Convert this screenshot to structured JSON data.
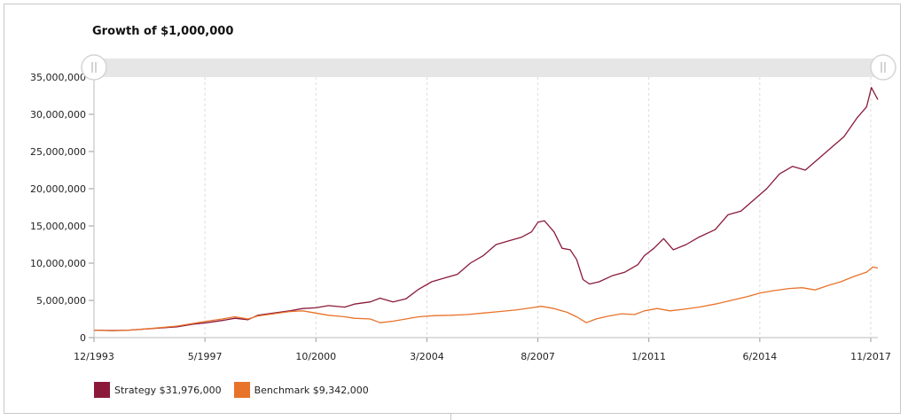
{
  "chart_data": {
    "type": "line",
    "title": "Growth of $1,000,000",
    "xlabel": "",
    "ylabel": "",
    "x_tick_labels": [
      "12/1993",
      "5/1997",
      "10/2000",
      "3/2004",
      "8/2007",
      "1/2011",
      "6/2014",
      "11/2017"
    ],
    "y_tick_labels": [
      "0",
      "5,000,000",
      "10,000,000",
      "15,000,000",
      "20,000,000",
      "25,000,000",
      "30,000,000",
      "35,000,000"
    ],
    "ylim": [
      0,
      35000000
    ],
    "xlim": [
      1993.92,
      2018.25
    ],
    "grid": "vertical dashed",
    "legend_position": "bottom-left",
    "series": [
      {
        "name": "Strategy $31,976,000",
        "color": "#8b1a3a",
        "points": [
          [
            1993.92,
            1000000
          ],
          [
            1994.5,
            950000
          ],
          [
            1995.0,
            1000000
          ],
          [
            1995.5,
            1150000
          ],
          [
            1996.0,
            1300000
          ],
          [
            1996.5,
            1450000
          ],
          [
            1997.0,
            1800000
          ],
          [
            1997.42,
            2000000
          ],
          [
            1997.9,
            2300000
          ],
          [
            1998.3,
            2600000
          ],
          [
            1998.7,
            2400000
          ],
          [
            1999.0,
            3000000
          ],
          [
            1999.5,
            3300000
          ],
          [
            2000.0,
            3600000
          ],
          [
            2000.4,
            3900000
          ],
          [
            2000.8,
            4000000
          ],
          [
            2001.2,
            4300000
          ],
          [
            2001.7,
            4100000
          ],
          [
            2002.0,
            4500000
          ],
          [
            2002.5,
            4800000
          ],
          [
            2002.8,
            5300000
          ],
          [
            2003.2,
            4800000
          ],
          [
            2003.6,
            5200000
          ],
          [
            2004.0,
            6500000
          ],
          [
            2004.4,
            7500000
          ],
          [
            2004.8,
            8000000
          ],
          [
            2005.2,
            8500000
          ],
          [
            2005.6,
            10000000
          ],
          [
            2006.0,
            11000000
          ],
          [
            2006.4,
            12500000
          ],
          [
            2006.8,
            13000000
          ],
          [
            2007.2,
            13500000
          ],
          [
            2007.5,
            14200000
          ],
          [
            2007.7,
            15500000
          ],
          [
            2007.9,
            15700000
          ],
          [
            2008.2,
            14200000
          ],
          [
            2008.45,
            12000000
          ],
          [
            2008.7,
            11800000
          ],
          [
            2008.9,
            10500000
          ],
          [
            2009.1,
            7800000
          ],
          [
            2009.3,
            7200000
          ],
          [
            2009.6,
            7500000
          ],
          [
            2010.0,
            8300000
          ],
          [
            2010.4,
            8800000
          ],
          [
            2010.8,
            9800000
          ],
          [
            2011.0,
            11000000
          ],
          [
            2011.3,
            12000000
          ],
          [
            2011.6,
            13300000
          ],
          [
            2011.9,
            11800000
          ],
          [
            2012.3,
            12500000
          ],
          [
            2012.7,
            13500000
          ],
          [
            2013.2,
            14500000
          ],
          [
            2013.6,
            16500000
          ],
          [
            2014.0,
            17000000
          ],
          [
            2014.4,
            18500000
          ],
          [
            2014.8,
            20000000
          ],
          [
            2015.2,
            22000000
          ],
          [
            2015.6,
            23000000
          ],
          [
            2016.0,
            22500000
          ],
          [
            2016.4,
            24000000
          ],
          [
            2016.8,
            25500000
          ],
          [
            2017.2,
            27000000
          ],
          [
            2017.6,
            29500000
          ],
          [
            2017.9,
            31000000
          ],
          [
            2018.05,
            33600000
          ],
          [
            2018.25,
            31976000
          ]
        ]
      },
      {
        "name": "Benchmark $9,342,000",
        "color": "#e8732a",
        "points": [
          [
            1993.92,
            1000000
          ],
          [
            1994.5,
            900000
          ],
          [
            1995.0,
            1000000
          ],
          [
            1995.5,
            1150000
          ],
          [
            1996.0,
            1350000
          ],
          [
            1996.5,
            1550000
          ],
          [
            1997.0,
            1900000
          ],
          [
            1997.42,
            2200000
          ],
          [
            1997.9,
            2500000
          ],
          [
            1998.3,
            2800000
          ],
          [
            1998.7,
            2500000
          ],
          [
            1999.0,
            2900000
          ],
          [
            1999.5,
            3200000
          ],
          [
            2000.0,
            3500000
          ],
          [
            2000.4,
            3600000
          ],
          [
            2000.8,
            3300000
          ],
          [
            2001.2,
            3000000
          ],
          [
            2001.7,
            2800000
          ],
          [
            2002.0,
            2600000
          ],
          [
            2002.5,
            2500000
          ],
          [
            2002.8,
            2000000
          ],
          [
            2003.2,
            2200000
          ],
          [
            2003.6,
            2500000
          ],
          [
            2004.0,
            2800000
          ],
          [
            2004.5,
            2950000
          ],
          [
            2005.0,
            3000000
          ],
          [
            2005.5,
            3100000
          ],
          [
            2006.0,
            3300000
          ],
          [
            2006.5,
            3500000
          ],
          [
            2007.0,
            3700000
          ],
          [
            2007.5,
            4000000
          ],
          [
            2007.8,
            4200000
          ],
          [
            2008.2,
            3900000
          ],
          [
            2008.6,
            3400000
          ],
          [
            2008.9,
            2800000
          ],
          [
            2009.2,
            2000000
          ],
          [
            2009.5,
            2500000
          ],
          [
            2009.9,
            2900000
          ],
          [
            2010.3,
            3200000
          ],
          [
            2010.7,
            3100000
          ],
          [
            2011.0,
            3600000
          ],
          [
            2011.4,
            3900000
          ],
          [
            2011.8,
            3600000
          ],
          [
            2012.2,
            3800000
          ],
          [
            2012.7,
            4100000
          ],
          [
            2013.2,
            4500000
          ],
          [
            2013.7,
            5000000
          ],
          [
            2014.2,
            5500000
          ],
          [
            2014.6,
            6000000
          ],
          [
            2015.0,
            6300000
          ],
          [
            2015.5,
            6600000
          ],
          [
            2015.9,
            6700000
          ],
          [
            2016.3,
            6400000
          ],
          [
            2016.7,
            7000000
          ],
          [
            2017.1,
            7500000
          ],
          [
            2017.5,
            8200000
          ],
          [
            2017.9,
            8800000
          ],
          [
            2018.1,
            9500000
          ],
          [
            2018.25,
            9342000
          ]
        ]
      }
    ]
  }
}
